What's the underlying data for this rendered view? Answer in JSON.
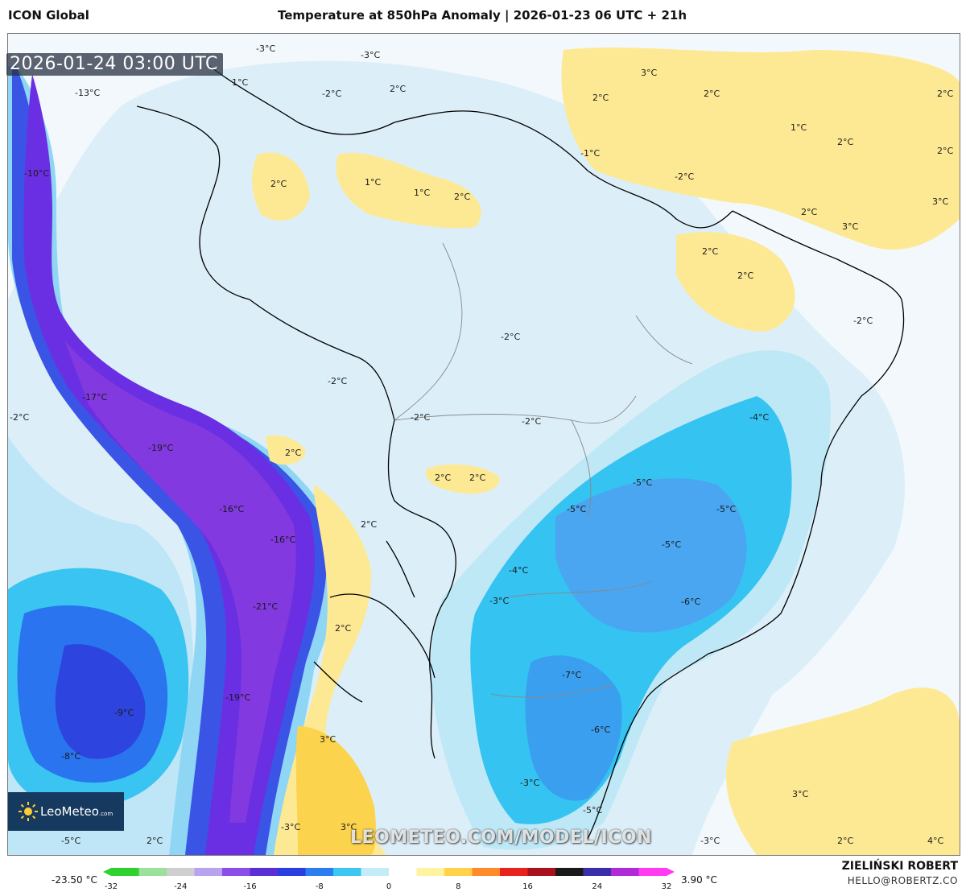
{
  "header": {
    "model": "ICON Global",
    "title": "Temperature at 850hPa Anomaly | 2026-01-23 06 UTC + 21h"
  },
  "map": {
    "valid_time": "2026-01-24 03:00 UTC",
    "watermark": "LEOMETEO.COM/MODEL/ICON",
    "colors": {
      "ocean_base": "#f2f8fc",
      "light_blue": "#cde9f7",
      "cyan": "#34c6f2",
      "blue": "#2a6df0",
      "deep_blue": "#3a2fd6",
      "purple": "#7a2fe0",
      "yellow": "#fde891",
      "pale_yellow": "#fff3c4",
      "border": "#000000"
    },
    "labels": [
      "-3°C",
      "-3°C",
      "1°C",
      "-2°C",
      "2°C",
      "-13°C",
      "-10°C",
      "2°C",
      "1°C",
      "1°C",
      "2°C",
      "3°C",
      "2°C",
      "-1°C",
      "2°C",
      "1°C",
      "2°C",
      "2°C",
      "-2°C",
      "3°C",
      "2°C",
      "2°C",
      "2°C",
      "2°C",
      "3°C",
      "-2°C",
      "-2°C",
      "-2°C",
      "-17°C",
      "-2°C",
      "-2°C",
      "-2°C",
      "-4°C",
      "-19°C",
      "2°C",
      "2°C",
      "2°C",
      "-5°C",
      "-16°C",
      "-16°C",
      "-5°C",
      "-5°C",
      "2°C",
      "-5°C",
      "-4°C",
      "-3°C",
      "-21°C",
      "-6°C",
      "2°C",
      "-7°C",
      "-19°C",
      "-9°C",
      "3°C",
      "-6°C",
      "-8°C",
      "3°C",
      "-3°C",
      "-3°C",
      "3°C",
      "-5°C",
      "-5°C",
      "2°C",
      "-3°C",
      "2°C",
      "4°C"
    ]
  },
  "legend": {
    "min_label": "-23.50 °C",
    "max_label": "3.90 °C",
    "ticks": [
      "-32",
      "-24",
      "-16",
      "-8",
      "0",
      "8",
      "16",
      "24",
      "32"
    ],
    "colors": [
      "#2fd12f",
      "#9be09b",
      "#cfcfcf",
      "#b9a2ee",
      "#8a4fe8",
      "#5a2fd6",
      "#2a3fe0",
      "#2a7ef0",
      "#3cc6f2",
      "#c4ecf8",
      "#ffffff",
      "#fff3a0",
      "#ffd24a",
      "#ff8a2a",
      "#e8231e",
      "#a8121e",
      "#1a1a1a",
      "#3a2fa8",
      "#b12ad8",
      "#ff3cf2"
    ]
  },
  "author": {
    "name": "ZIELIŃSKI ROBERT",
    "contact": "HELLO@ROBERTZ.CO"
  },
  "logo": {
    "text_main": "LeoMeteo",
    "text_small": ".com"
  }
}
